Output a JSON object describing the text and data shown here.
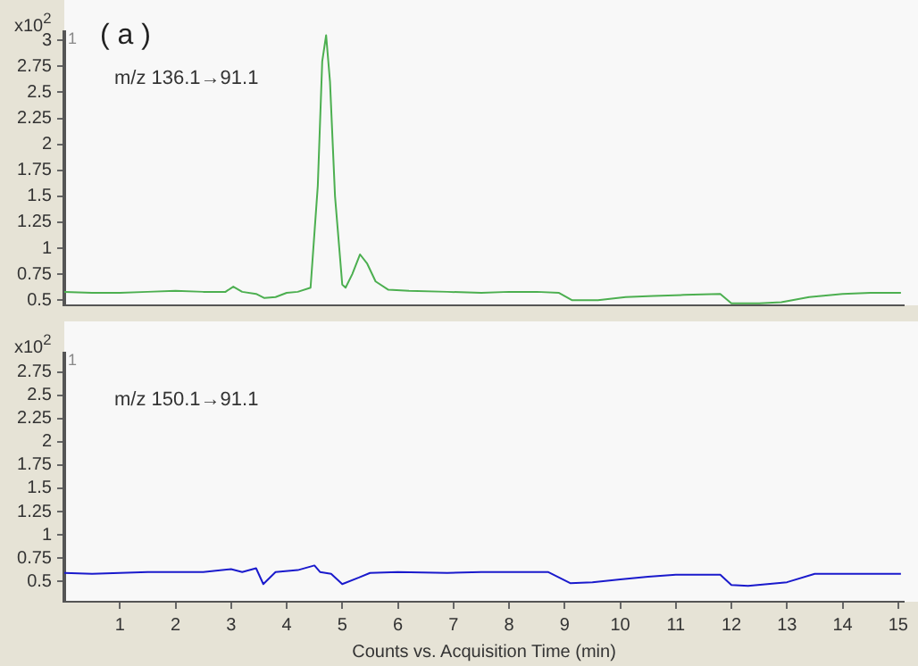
{
  "chart_data": [
    {
      "type": "line",
      "title": "( a )",
      "annotations": [
        "x10$^{2}$",
        "1",
        "m/z 136.1→91.1"
      ],
      "xlim": [
        0,
        15.1
      ],
      "xticks": [
        1,
        2,
        3,
        4,
        5,
        6,
        7,
        8,
        9,
        10,
        11,
        12,
        13,
        14,
        15
      ],
      "ylim": [
        0.45,
        3.08
      ],
      "yticks": [
        0.5,
        0.75,
        1,
        1.25,
        1.5,
        1.75,
        2,
        2.25,
        2.5,
        2.75,
        3
      ],
      "tick_labels": "y",
      "grid": false,
      "legend": false,
      "marker": "none",
      "line_style": "solid",
      "series": [
        {
          "color": "#4caf50",
          "x": [
            0,
            0.5,
            1,
            1.5,
            2,
            2.5,
            2.9,
            3.04,
            3.2,
            3.45,
            3.6,
            3.8,
            4.0,
            4.2,
            4.43,
            4.56,
            4.64,
            4.71,
            4.78,
            4.87,
            5.0,
            5.06,
            5.18,
            5.32,
            5.45,
            5.6,
            5.83,
            6.2,
            6.89,
            7.5,
            8.0,
            8.5,
            8.9,
            9.13,
            9.6,
            10.1,
            10.6,
            11.15,
            11.8,
            12.0,
            12.5,
            12.9,
            13.4,
            14.0,
            14.5,
            15.05
          ],
          "values": [
            0.58,
            0.57,
            0.57,
            0.58,
            0.59,
            0.58,
            0.58,
            0.63,
            0.58,
            0.56,
            0.52,
            0.53,
            0.57,
            0.58,
            0.62,
            1.6,
            2.8,
            3.05,
            2.6,
            1.5,
            0.65,
            0.62,
            0.75,
            0.94,
            0.85,
            0.68,
            0.6,
            0.59,
            0.58,
            0.57,
            0.58,
            0.58,
            0.57,
            0.5,
            0.5,
            0.53,
            0.54,
            0.55,
            0.56,
            0.47,
            0.47,
            0.48,
            0.53,
            0.56,
            0.57,
            0.57
          ]
        }
      ]
    },
    {
      "type": "line",
      "xlabel": "Counts vs. Acquisition Time (min)",
      "annotations": [
        "x10$^{2}$",
        "1",
        "m/z 150.1→91.1"
      ],
      "xlim": [
        0,
        15.1
      ],
      "xticks": [
        1,
        2,
        3,
        4,
        5,
        6,
        7,
        8,
        9,
        10,
        11,
        12,
        13,
        14,
        15
      ],
      "ylim": [
        0.28,
        2.95
      ],
      "yticks": [
        0.5,
        0.75,
        1,
        1.25,
        1.5,
        1.75,
        2,
        2.25,
        2.5,
        2.75
      ],
      "grid": false,
      "legend": false,
      "marker": "none",
      "line_style": "solid",
      "series": [
        {
          "color": "#1a1acc",
          "x": [
            0,
            0.5,
            1,
            1.5,
            2,
            2.5,
            3.0,
            3.2,
            3.45,
            3.58,
            3.8,
            4.2,
            4.5,
            4.6,
            4.8,
            5.0,
            5.3,
            5.5,
            6.0,
            6.89,
            7.5,
            8.0,
            8.7,
            9.1,
            9.5,
            10.0,
            10.5,
            11.0,
            11.8,
            12.0,
            12.3,
            13.0,
            13.5,
            14.0,
            14.5,
            15.05
          ],
          "values": [
            0.59,
            0.58,
            0.59,
            0.6,
            0.6,
            0.6,
            0.63,
            0.6,
            0.64,
            0.47,
            0.6,
            0.62,
            0.67,
            0.6,
            0.58,
            0.47,
            0.54,
            0.59,
            0.6,
            0.59,
            0.6,
            0.6,
            0.6,
            0.48,
            0.49,
            0.52,
            0.55,
            0.57,
            0.57,
            0.46,
            0.45,
            0.49,
            0.58,
            0.58,
            0.58,
            0.58
          ]
        }
      ]
    }
  ]
}
